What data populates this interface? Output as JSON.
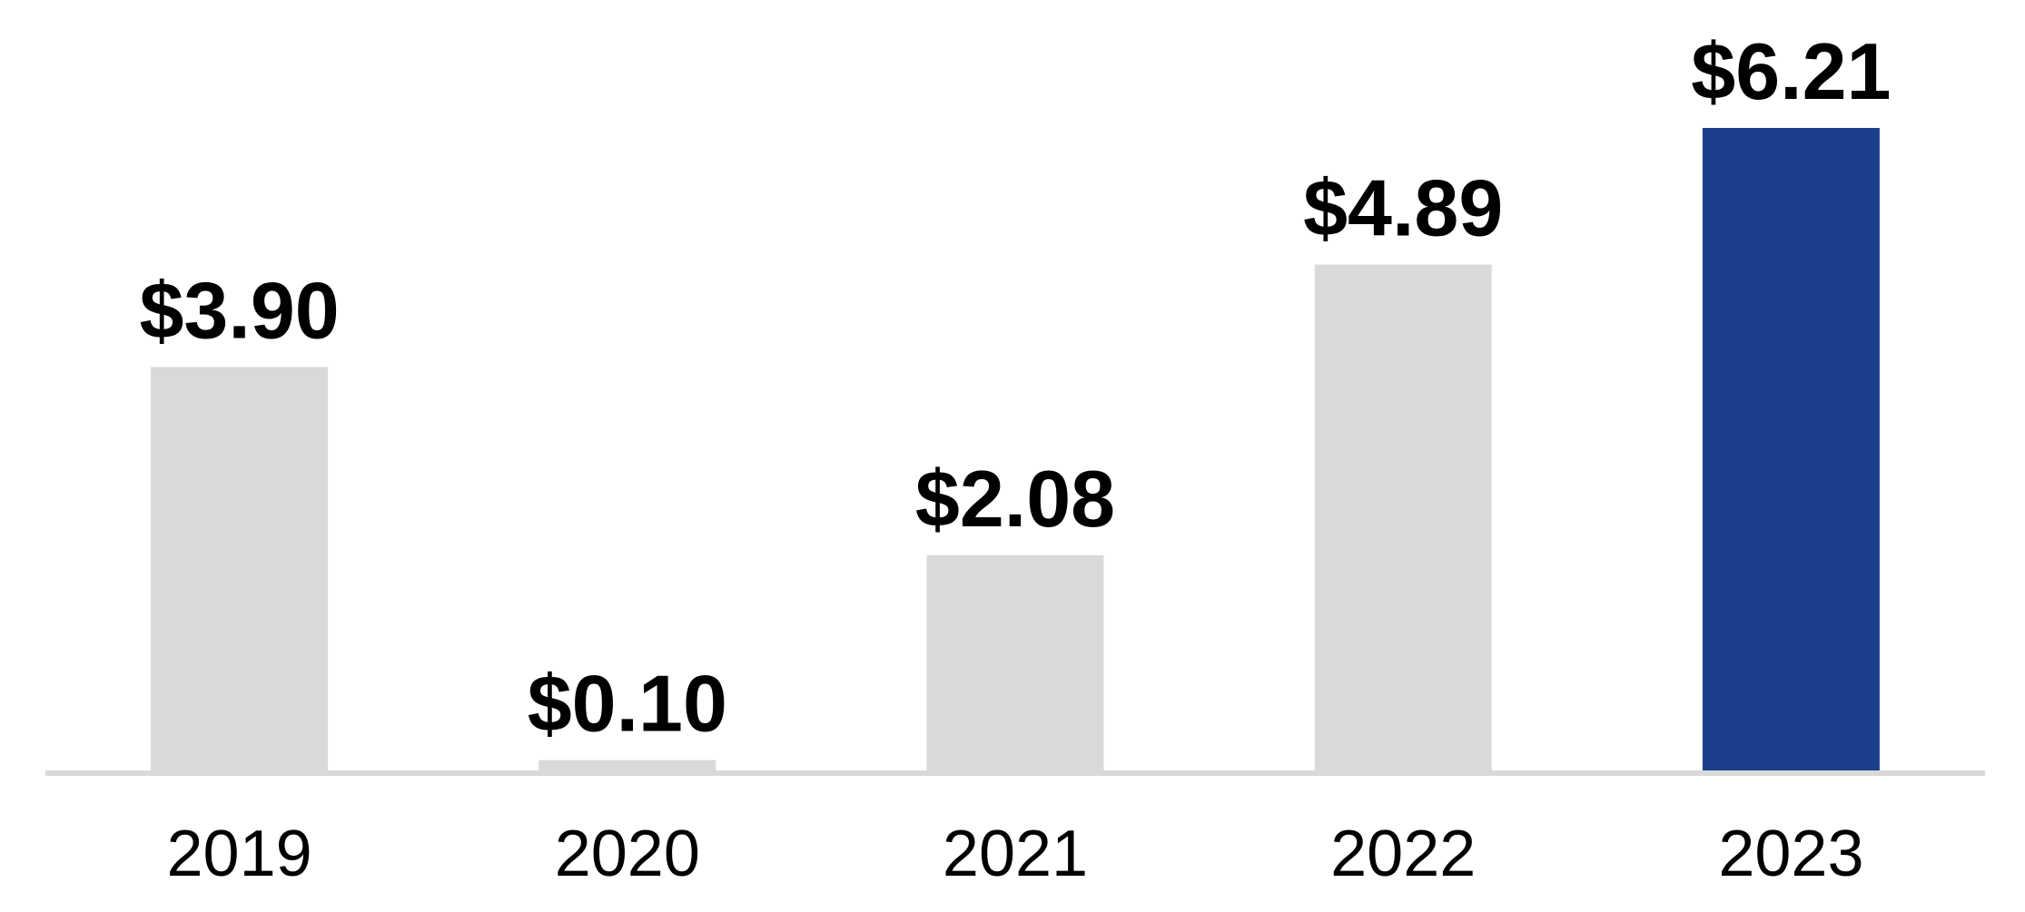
{
  "chart_data": {
    "type": "bar",
    "categories": [
      "2019",
      "2020",
      "2021",
      "2022",
      "2023"
    ],
    "values": [
      3.9,
      0.1,
      2.08,
      4.89,
      6.21
    ],
    "value_labels": [
      "$3.90",
      "$0.10",
      "$2.08",
      "$4.89",
      "$6.21"
    ],
    "colors": [
      "#d9d9d9",
      "#d9d9d9",
      "#d9d9d9",
      "#d9d9d9",
      "#1b3f8b"
    ]
  }
}
